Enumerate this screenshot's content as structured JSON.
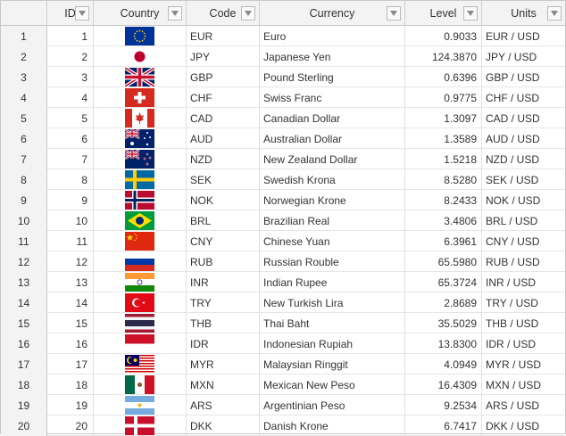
{
  "columns": [
    {
      "key": "rownum",
      "label": ""
    },
    {
      "key": "id",
      "label": "ID"
    },
    {
      "key": "country",
      "label": "Country"
    },
    {
      "key": "code",
      "label": "Code"
    },
    {
      "key": "currency",
      "label": "Currency"
    },
    {
      "key": "level",
      "label": "Level"
    },
    {
      "key": "units",
      "label": "Units"
    }
  ],
  "rows": [
    {
      "rownum": "1",
      "id": "1",
      "flag": "eu",
      "code": "EUR",
      "currency": "Euro",
      "level": "0.9033",
      "units": "EUR / USD"
    },
    {
      "rownum": "2",
      "id": "2",
      "flag": "jp",
      "code": "JPY",
      "currency": "Japanese Yen",
      "level": "124.3870",
      "units": "JPY / USD"
    },
    {
      "rownum": "3",
      "id": "3",
      "flag": "gb",
      "code": "GBP",
      "currency": "Pound Sterling",
      "level": "0.6396",
      "units": "GBP / USD"
    },
    {
      "rownum": "4",
      "id": "4",
      "flag": "ch",
      "code": "CHF",
      "currency": "Swiss Franc",
      "level": "0.9775",
      "units": "CHF / USD"
    },
    {
      "rownum": "5",
      "id": "5",
      "flag": "ca",
      "code": "CAD",
      "currency": "Canadian Dollar",
      "level": "1.3097",
      "units": "CAD / USD"
    },
    {
      "rownum": "6",
      "id": "6",
      "flag": "au",
      "code": "AUD",
      "currency": "Australian Dollar",
      "level": "1.3589",
      "units": "AUD / USD"
    },
    {
      "rownum": "7",
      "id": "7",
      "flag": "nz",
      "code": "NZD",
      "currency": "New Zealand Dollar",
      "level": "1.5218",
      "units": "NZD / USD"
    },
    {
      "rownum": "8",
      "id": "8",
      "flag": "se",
      "code": "SEK",
      "currency": "Swedish Krona",
      "level": "8.5280",
      "units": "SEK / USD"
    },
    {
      "rownum": "9",
      "id": "9",
      "flag": "no",
      "code": "NOK",
      "currency": "Norwegian Krone",
      "level": "8.2433",
      "units": "NOK / USD"
    },
    {
      "rownum": "10",
      "id": "10",
      "flag": "br",
      "code": "BRL",
      "currency": "Brazilian Real",
      "level": "3.4806",
      "units": "BRL / USD"
    },
    {
      "rownum": "11",
      "id": "11",
      "flag": "cn",
      "code": "CNY",
      "currency": "Chinese Yuan",
      "level": "6.3961",
      "units": "CNY / USD"
    },
    {
      "rownum": "12",
      "id": "12",
      "flag": "ru",
      "code": "RUB",
      "currency": "Russian Rouble",
      "level": "65.5980",
      "units": "RUB / USD"
    },
    {
      "rownum": "13",
      "id": "13",
      "flag": "in",
      "code": "INR",
      "currency": "Indian Rupee",
      "level": "65.3724",
      "units": "INR / USD"
    },
    {
      "rownum": "14",
      "id": "14",
      "flag": "tr",
      "code": "TRY",
      "currency": "New Turkish Lira",
      "level": "2.8689",
      "units": "TRY / USD"
    },
    {
      "rownum": "15",
      "id": "15",
      "flag": "th",
      "code": "THB",
      "currency": "Thai Baht",
      "level": "35.5029",
      "units": "THB / USD"
    },
    {
      "rownum": "16",
      "id": "16",
      "flag": "id",
      "code": "IDR",
      "currency": "Indonesian Rupiah",
      "level": "13.8300",
      "units": "IDR / USD"
    },
    {
      "rownum": "17",
      "id": "17",
      "flag": "my",
      "code": "MYR",
      "currency": "Malaysian Ringgit",
      "level": "4.0949",
      "units": "MYR / USD"
    },
    {
      "rownum": "18",
      "id": "18",
      "flag": "mx",
      "code": "MXN",
      "currency": "Mexican New Peso",
      "level": "16.4309",
      "units": "MXN / USD"
    },
    {
      "rownum": "19",
      "id": "19",
      "flag": "ar",
      "code": "ARS",
      "currency": "Argentinian Peso",
      "level": "9.2534",
      "units": "ARS / USD"
    },
    {
      "rownum": "20",
      "id": "20",
      "flag": "dk",
      "code": "DKK",
      "currency": "Danish Krone",
      "level": "6.7417",
      "units": "DKK / USD"
    }
  ]
}
